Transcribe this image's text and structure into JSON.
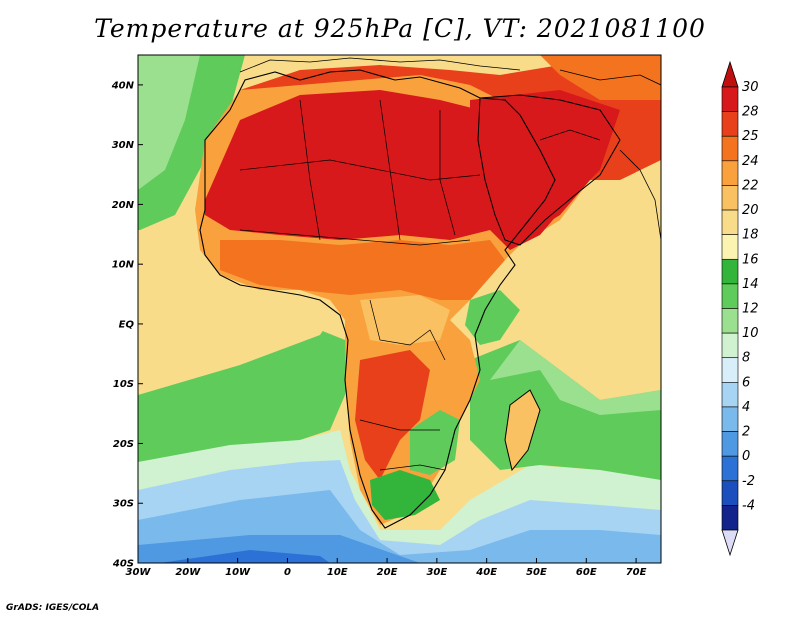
{
  "title": "Temperature at 925hPa [C], VT: 2021081100",
  "credit": "GrADS: IGES/COLA",
  "map": {
    "lon_range": [
      -30,
      75
    ],
    "lat_range": [
      -40,
      45
    ],
    "lon_ticks": [
      {
        "value": -30,
        "label": "30W"
      },
      {
        "value": -20,
        "label": "20W"
      },
      {
        "value": -10,
        "label": "10W"
      },
      {
        "value": 0,
        "label": "0"
      },
      {
        "value": 10,
        "label": "10E"
      },
      {
        "value": 20,
        "label": "20E"
      },
      {
        "value": 30,
        "label": "30E"
      },
      {
        "value": 40,
        "label": "40E"
      },
      {
        "value": 50,
        "label": "50E"
      },
      {
        "value": 60,
        "label": "60E"
      },
      {
        "value": 70,
        "label": "70E"
      }
    ],
    "lat_ticks": [
      {
        "value": 40,
        "label": "40N"
      },
      {
        "value": 30,
        "label": "30N"
      },
      {
        "value": 20,
        "label": "20N"
      },
      {
        "value": 10,
        "label": "10N"
      },
      {
        "value": 0,
        "label": "EQ"
      },
      {
        "value": -10,
        "label": "10S"
      },
      {
        "value": -20,
        "label": "20S"
      },
      {
        "value": -30,
        "label": "30S"
      },
      {
        "value": -40,
        "label": "40S"
      }
    ]
  },
  "colorbar": {
    "labels": [
      "30",
      "28",
      "25",
      "24",
      "22",
      "20",
      "18",
      "16",
      "14",
      "12",
      "10",
      "8",
      "6",
      "4",
      "2",
      "0",
      "-2",
      "-4"
    ],
    "colors": [
      "#d7191c",
      "#e8401a",
      "#f4731f",
      "#f9a23d",
      "#f9c162",
      "#f9dc8a",
      "#fbf3b0",
      "#33b43b",
      "#5ecb5a",
      "#9be08f",
      "#d0f2d0",
      "#d8eef9",
      "#a8d4f4",
      "#7ab9ec",
      "#4f98e2",
      "#2c72d6",
      "#1b4fbd",
      "#12238c"
    ],
    "top_cap_color": "#c00f0f",
    "bottom_cap_color": "#dcdcf7"
  }
}
